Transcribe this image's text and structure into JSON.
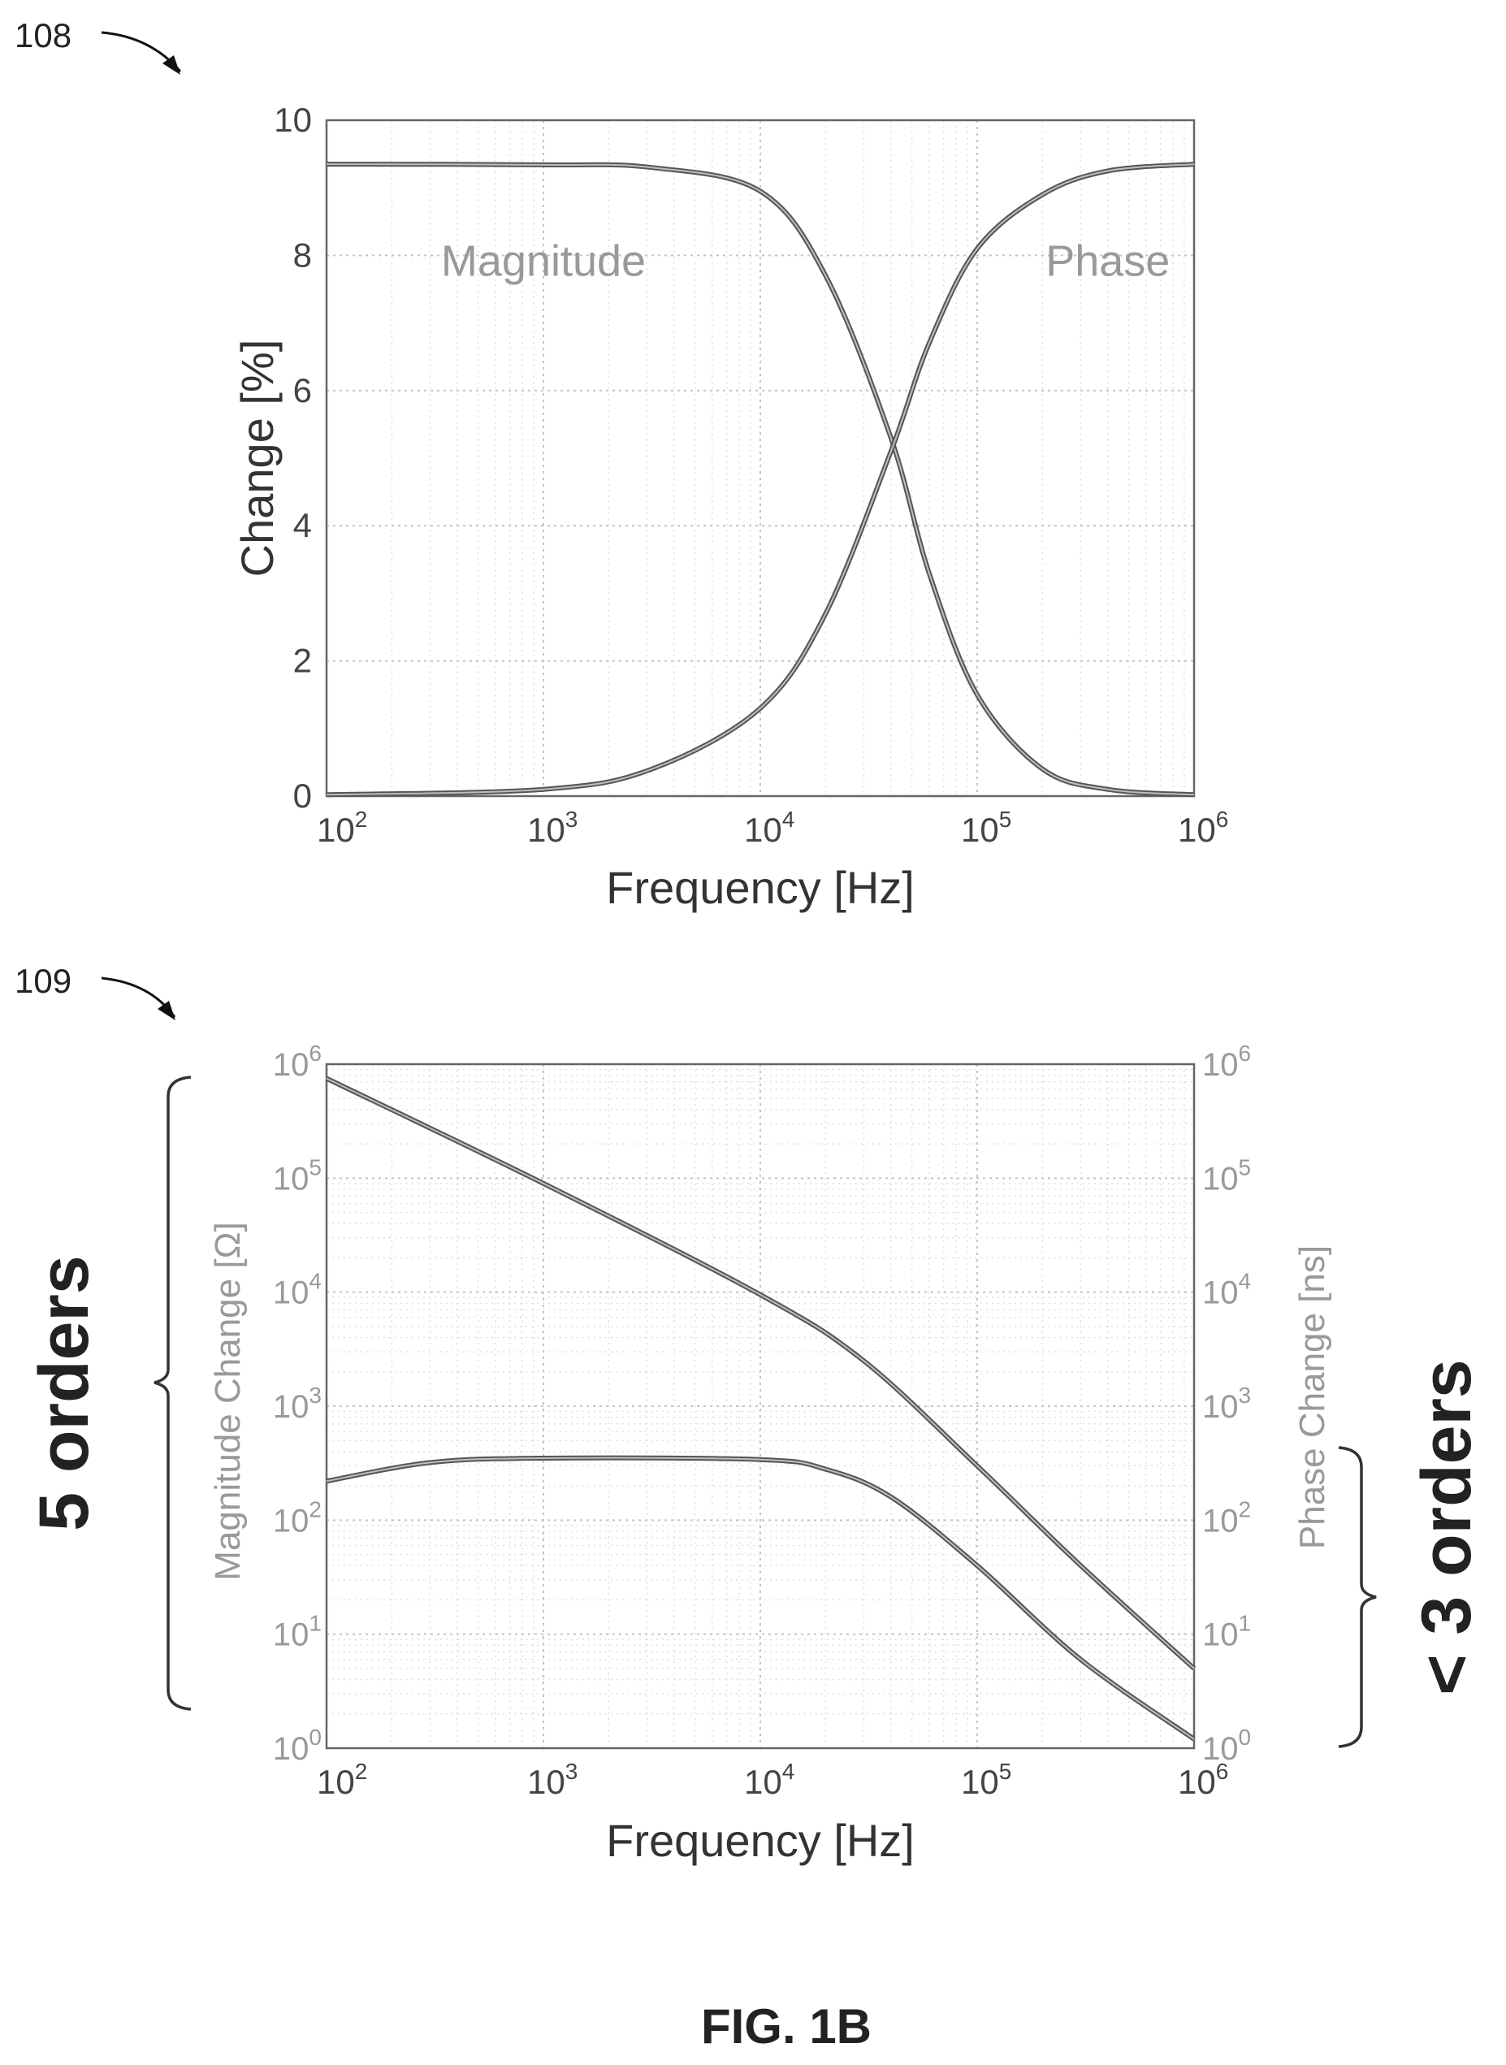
{
  "figure": {
    "caption": "FIG. 1B",
    "ref_top": "108",
    "ref_bottom": "109",
    "annotation_left": "5 orders",
    "annotation_right": "< 3 orders"
  },
  "chart_data": [
    {
      "id": "108",
      "type": "line",
      "xlabel": "Frequency [Hz]",
      "ylabel": "Change [%]",
      "xscale": "log",
      "xlim": [
        100,
        1000000
      ],
      "ylim": [
        0,
        10
      ],
      "x_ticks": [
        {
          "base": "10",
          "exp": "2",
          "value": 100
        },
        {
          "base": "10",
          "exp": "3",
          "value": 1000
        },
        {
          "base": "10",
          "exp": "4",
          "value": 10000
        },
        {
          "base": "10",
          "exp": "5",
          "value": 100000
        },
        {
          "base": "10",
          "exp": "6",
          "value": 1000000
        }
      ],
      "y_ticks": [
        "0",
        "2",
        "4",
        "6",
        "8",
        "10"
      ],
      "grid": true,
      "annotations": [
        {
          "text": "Magnitude",
          "x": 1000,
          "y": 7.7
        },
        {
          "text": "Phase",
          "x": 400000,
          "y": 7.7
        }
      ],
      "series": [
        {
          "name": "Magnitude",
          "x": [
            100,
            1000,
            3162,
            10000,
            20000,
            40000,
            60000,
            100000,
            200000,
            400000,
            1000000
          ],
          "y": [
            9.35,
            9.34,
            9.3,
            8.95,
            7.7,
            5.3,
            3.3,
            1.5,
            0.4,
            0.1,
            0.02
          ]
        },
        {
          "name": "Phase",
          "x": [
            100,
            1000,
            3162,
            10000,
            20000,
            40000,
            60000,
            100000,
            200000,
            400000,
            1000000
          ],
          "y": [
            0.02,
            0.1,
            0.4,
            1.3,
            2.7,
            5.1,
            6.7,
            8.1,
            8.9,
            9.25,
            9.35
          ]
        }
      ]
    },
    {
      "id": "109",
      "type": "line",
      "xlabel": "Frequency [Hz]",
      "ylabel": "Magnitude Change [Ω]",
      "ylabel_right": "Phase Change [ns]",
      "xscale": "log",
      "yscale": "log",
      "xlim": [
        100,
        1000000
      ],
      "ylim": [
        1,
        1000000
      ],
      "x_ticks": [
        {
          "base": "10",
          "exp": "2",
          "value": 100
        },
        {
          "base": "10",
          "exp": "3",
          "value": 1000
        },
        {
          "base": "10",
          "exp": "4",
          "value": 10000
        },
        {
          "base": "10",
          "exp": "5",
          "value": 100000
        },
        {
          "base": "10",
          "exp": "6",
          "value": 1000000
        }
      ],
      "y_ticks": [
        {
          "base": "10",
          "exp": "0",
          "value": 1
        },
        {
          "base": "10",
          "exp": "1",
          "value": 10
        },
        {
          "base": "10",
          "exp": "2",
          "value": 100
        },
        {
          "base": "10",
          "exp": "3",
          "value": 1000
        },
        {
          "base": "10",
          "exp": "4",
          "value": 10000
        },
        {
          "base": "10",
          "exp": "5",
          "value": 100000
        },
        {
          "base": "10",
          "exp": "6",
          "value": 1000000
        }
      ],
      "grid": true,
      "series": [
        {
          "name": "Magnitude Change",
          "x": [
            100,
            1000,
            10000,
            30000,
            100000,
            300000,
            1000000
          ],
          "y": [
            750000,
            90000,
            9500,
            2500,
            300,
            40,
            5
          ]
        },
        {
          "name": "Phase Change",
          "x": [
            100,
            300,
            1000,
            10000,
            20000,
            40000,
            100000,
            300000,
            1000000
          ],
          "y": [
            220,
            320,
            350,
            340,
            280,
            160,
            40,
            6,
            1.2
          ]
        }
      ]
    }
  ]
}
